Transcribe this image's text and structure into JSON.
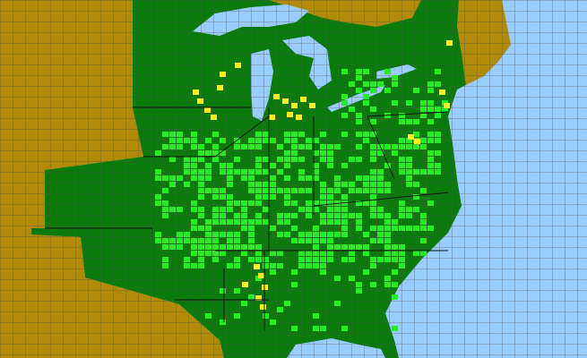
{
  "colors": {
    "water": "#99ccff",
    "absent_region": "#b08a08",
    "state_present": "#0a7a0a",
    "county_present": "#22ee22",
    "county_other": "#ffee22",
    "county_lines": "#555555",
    "state_lines": "#111111"
  }
}
